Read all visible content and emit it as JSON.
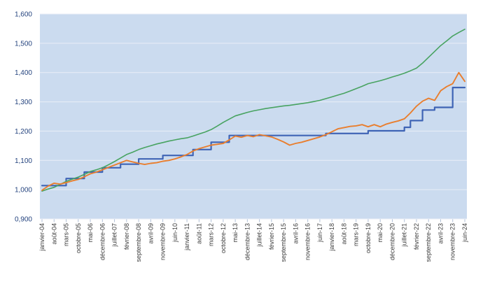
{
  "chart_data": {
    "type": "line",
    "title": "",
    "xlabel": "",
    "ylabel": "",
    "ylim": [
      900,
      1600
    ],
    "grid": "horizontal-only",
    "legend": "none",
    "plot_bg_color": "#cbdbef",
    "outer_bg_color": "#ffffff",
    "gridline_color": "#e9eef7",
    "y_tick_color": "#24437e",
    "x_tick_color": "#3b3b3b",
    "axis_tick_mark_color": "#b0bfd6",
    "y_tick_labels": [
      "1,600",
      "1,500",
      "1,400",
      "1,300",
      "1,200",
      "1,100",
      "1,000",
      "0,900"
    ],
    "y_tick_values": [
      1600,
      1500,
      1400,
      1300,
      1200,
      1100,
      1000,
      900
    ],
    "categories": [
      "janvier-04",
      "août-04",
      "mars-05",
      "octobre-05",
      "mai-06",
      "décembre-06",
      "juillet-07",
      "février-08",
      "septembre-08",
      "avril-09",
      "novembre-09",
      "juin-10",
      "janvier-11",
      "août-11",
      "mars-12",
      "octobre-12",
      "mai-13",
      "décembre-13",
      "juillet-14",
      "février-15",
      "septembre-15",
      "avril-16",
      "novembre-16",
      "juin-17",
      "janvier-18",
      "août-18",
      "mars-19",
      "octobre-19",
      "mai-20",
      "décembre-20",
      "juillet-21",
      "février-22",
      "septembre-22",
      "avril-23",
      "novembre-23",
      "juin-24"
    ],
    "samples_per_category_interval": 2,
    "series": [
      {
        "name": "green-line",
        "color": "#48a361",
        "stroke_width": 1.6,
        "step": false,
        "values": [
          995,
          1002,
          1008,
          1018,
          1028,
          1036,
          1043,
          1052,
          1062,
          1068,
          1075,
          1085,
          1096,
          1108,
          1120,
          1128,
          1137,
          1144,
          1150,
          1156,
          1161,
          1166,
          1170,
          1174,
          1177,
          1183,
          1190,
          1197,
          1205,
          1217,
          1230,
          1241,
          1252,
          1258,
          1264,
          1269,
          1273,
          1277,
          1280,
          1283,
          1286,
          1288,
          1291,
          1294,
          1297,
          1301,
          1305,
          1311,
          1317,
          1323,
          1329,
          1337,
          1345,
          1353,
          1362,
          1367,
          1372,
          1378,
          1385,
          1391,
          1398,
          1406,
          1415,
          1432,
          1452,
          1472,
          1492,
          1508,
          1525,
          1537,
          1548
        ]
      },
      {
        "name": "orange-line",
        "color": "#e97e2e",
        "stroke_width": 1.9,
        "step": false,
        "values": [
          998,
          1012,
          1022,
          1019,
          1024,
          1030,
          1035,
          1044,
          1054,
          1060,
          1068,
          1076,
          1084,
          1092,
          1100,
          1095,
          1090,
          1086,
          1090,
          1092,
          1097,
          1100,
          1105,
          1112,
          1120,
          1132,
          1140,
          1146,
          1152,
          1155,
          1158,
          1170,
          1183,
          1179,
          1185,
          1181,
          1188,
          1184,
          1180,
          1172,
          1163,
          1152,
          1158,
          1162,
          1168,
          1174,
          1180,
          1188,
          1198,
          1208,
          1212,
          1216,
          1218,
          1222,
          1215,
          1222,
          1215,
          1224,
          1230,
          1235,
          1242,
          1262,
          1285,
          1302,
          1312,
          1305,
          1338,
          1352,
          1362,
          1400,
          1370
        ]
      },
      {
        "name": "blue-line",
        "color": "#3f64b5",
        "stroke_width": 2.2,
        "step": true,
        "values": [
          1014,
          1014,
          1014,
          1014,
          1038,
          1038,
          1038,
          1060,
          1060,
          1060,
          1075,
          1075,
          1075,
          1087,
          1087,
          1087,
          1105,
          1105,
          1105,
          1105,
          1117,
          1117,
          1117,
          1117,
          1117,
          1137,
          1137,
          1137,
          1162,
          1162,
          1162,
          1185,
          1185,
          1185,
          1185,
          1185,
          1185,
          1185,
          1185,
          1185,
          1185,
          1185,
          1185,
          1185,
          1185,
          1185,
          1185,
          1192,
          1192,
          1192,
          1192,
          1192,
          1192,
          1192,
          1201,
          1201,
          1201,
          1201,
          1201,
          1201,
          1213,
          1236,
          1236,
          1272,
          1272,
          1281,
          1281,
          1281,
          1349,
          1349,
          1349
        ]
      }
    ]
  }
}
